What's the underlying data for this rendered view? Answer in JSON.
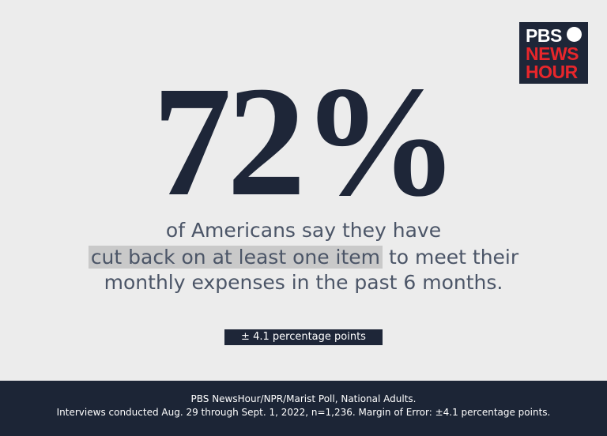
{
  "logo": {
    "line1": "PBS",
    "line2": "NEWS",
    "line3": "HOUR"
  },
  "stat": "72%",
  "description": {
    "line1": "of Americans say they have",
    "highlight": "cut back on at least one item",
    "line2_rest": "to meet their",
    "line3": "monthly expenses in the past 6 months."
  },
  "margin_badge": "± 4.1 percentage points",
  "footer": {
    "line1": "PBS NewsHour/NPR/Marist Poll, National Adults.",
    "line2": "Interviews conducted Aug. 29 through Sept. 1, 2022, n=1,236. Margin of Error: ±4.1 percentage points."
  }
}
